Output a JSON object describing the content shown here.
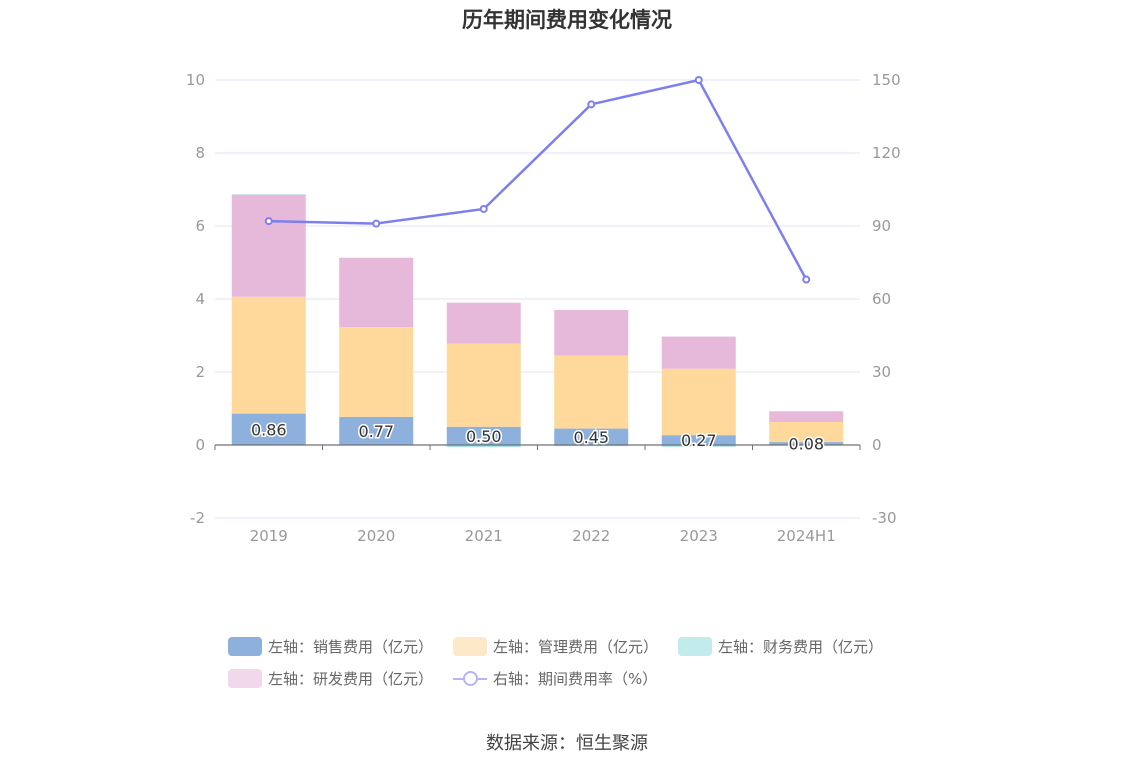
{
  "chart_data": {
    "type": "bar",
    "title": "历年期间费用变化情况",
    "categories": [
      "2019",
      "2020",
      "2021",
      "2022",
      "2023",
      "2024H1"
    ],
    "y_left": {
      "min": -2,
      "max": 10,
      "ticks": [
        "10",
        "8",
        "6",
        "4",
        "2",
        "0",
        "-2"
      ]
    },
    "y_right": {
      "min": -30,
      "max": 150,
      "ticks": [
        "150",
        "120",
        "90",
        "60",
        "30",
        "0",
        "-30"
      ]
    },
    "series": [
      {
        "name": "左轴：销售费用（亿元）",
        "type": "bar",
        "axis": "left",
        "color": "#8eb0dc",
        "values": [
          0.86,
          0.77,
          0.5,
          0.45,
          0.27,
          0.08
        ],
        "labels": [
          "0.86",
          "0.77",
          "0.50",
          "0.45",
          "0.27",
          "0.08"
        ]
      },
      {
        "name": "左轴：管理费用（亿元）",
        "type": "bar",
        "axis": "left",
        "color": "#ffd99b",
        "values": [
          3.2,
          2.46,
          2.28,
          2.0,
          1.82,
          0.55
        ]
      },
      {
        "name": "左轴：财务费用（亿元）",
        "type": "bar",
        "axis": "left",
        "color": "#a9e3e6",
        "values": [
          0.01,
          -0.01,
          -0.06,
          -0.03,
          -0.05,
          0.02
        ]
      },
      {
        "name": "左轴：研发费用（亿元）",
        "type": "bar",
        "axis": "left",
        "color": "#e6b9da",
        "values": [
          2.8,
          1.9,
          1.12,
          1.25,
          0.88,
          0.28
        ]
      },
      {
        "name": "右轴：期间费用率（%）",
        "type": "line",
        "axis": "right",
        "color": "#7d7fee",
        "values": [
          92,
          91,
          97,
          140,
          150,
          68
        ]
      }
    ],
    "grid": true,
    "legend_position": "bottom"
  },
  "legend": {
    "rows": [
      [
        {
          "label": "左轴：销售费用（亿元）",
          "kind": "bar",
          "color": "#8eb0dc"
        },
        {
          "label": "左轴：管理费用（亿元）",
          "kind": "bar",
          "color": "#fde9c8"
        },
        {
          "label": "左轴：财务费用（亿元）",
          "kind": "bar",
          "color": "#c2ebec"
        }
      ],
      [
        {
          "label": "左轴：研发费用（亿元）",
          "kind": "bar",
          "color": "#f1d8ea"
        },
        {
          "label": "右轴：期间费用率（%）",
          "kind": "line",
          "color": "#b4b5f4"
        }
      ]
    ]
  },
  "source_note": "数据来源：恒生聚源"
}
